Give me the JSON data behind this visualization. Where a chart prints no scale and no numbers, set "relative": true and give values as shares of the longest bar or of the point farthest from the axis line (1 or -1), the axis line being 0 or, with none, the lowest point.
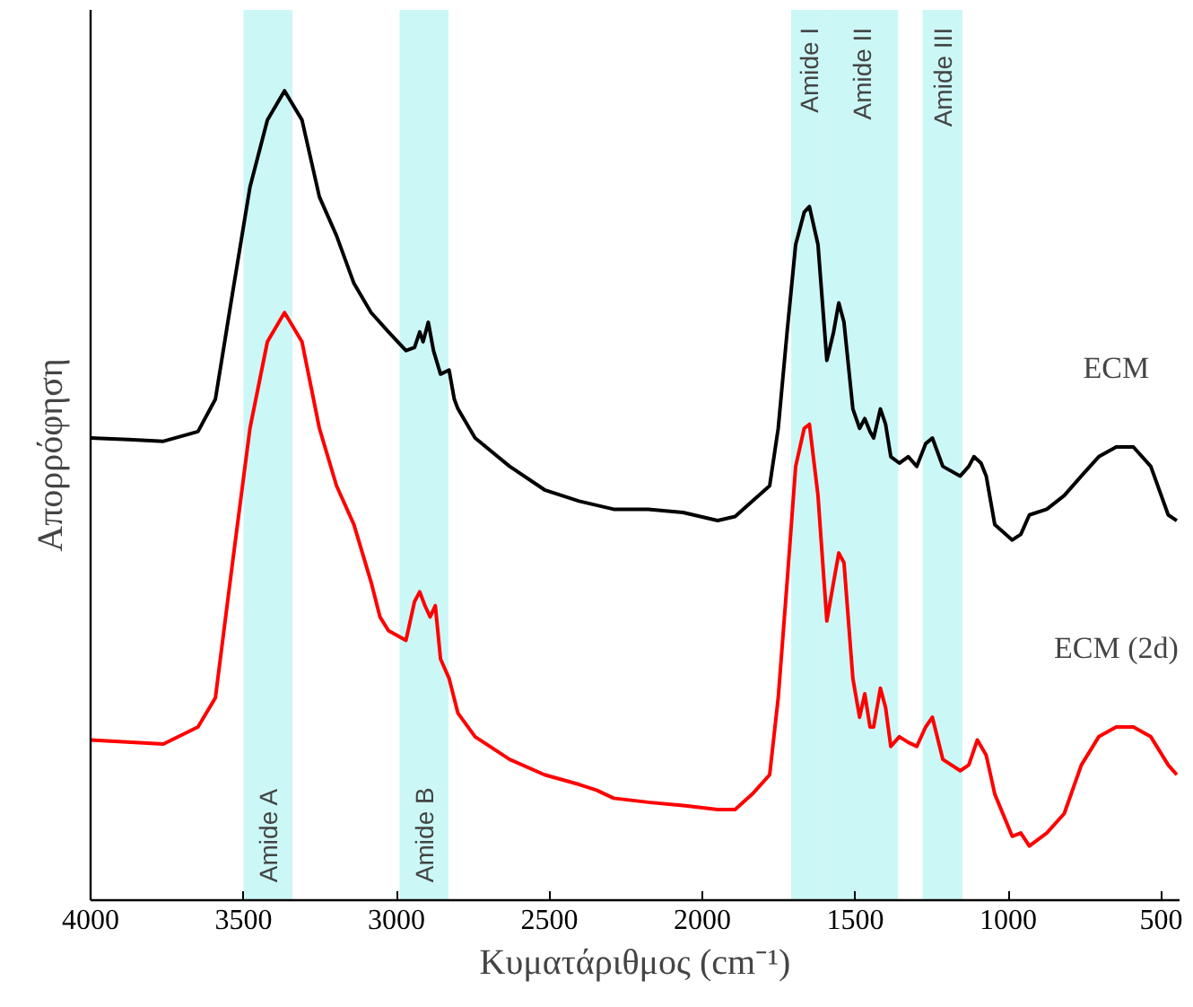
{
  "chart_data": {
    "type": "line",
    "xlabel": "Κυματάριθμος (cm⁻¹)",
    "ylabel": "Απορρόφηση",
    "relative": true,
    "xlim": [
      4000,
      440
    ],
    "xticks": [
      4000,
      3500,
      3000,
      2500,
      2000,
      1500,
      1000,
      500
    ],
    "tick_labels": "x",
    "grid": false,
    "legend": false,
    "series": [
      {
        "name": "ECM",
        "color": "#000000",
        "x": [
          4000,
          3875,
          3762,
          3649,
          3592,
          3536,
          3479,
          3422,
          3366,
          3309,
          3252,
          3196,
          3139,
          3083,
          3026,
          2969,
          2941,
          2924,
          2913,
          2896,
          2879,
          2856,
          2828,
          2811,
          2799,
          2743,
          2630,
          2516,
          2403,
          2290,
          2177,
          2063,
          1950,
          1893,
          1837,
          1780,
          1752,
          1723,
          1695,
          1667,
          1650,
          1622,
          1593,
          1571,
          1554,
          1537,
          1508,
          1486,
          1469,
          1452,
          1440,
          1418,
          1401,
          1384,
          1356,
          1327,
          1299,
          1270,
          1248,
          1214,
          1157,
          1129,
          1112,
          1089,
          1072,
          1044,
          987,
          959,
          931,
          874,
          817,
          761,
          704,
          647,
          591,
          534,
          477,
          449
        ],
        "values": [
          0.571,
          0.569,
          0.567,
          0.579,
          0.619,
          0.75,
          0.881,
          0.964,
          1.0,
          0.964,
          0.869,
          0.821,
          0.762,
          0.726,
          0.702,
          0.679,
          0.683,
          0.702,
          0.69,
          0.714,
          0.679,
          0.65,
          0.655,
          0.619,
          0.607,
          0.571,
          0.536,
          0.507,
          0.493,
          0.483,
          0.483,
          0.479,
          0.469,
          0.474,
          0.493,
          0.512,
          0.583,
          0.702,
          0.81,
          0.85,
          0.857,
          0.81,
          0.667,
          0.702,
          0.738,
          0.714,
          0.607,
          0.583,
          0.595,
          0.579,
          0.571,
          0.607,
          0.588,
          0.548,
          0.54,
          0.548,
          0.536,
          0.564,
          0.571,
          0.536,
          0.524,
          0.536,
          0.548,
          0.54,
          0.524,
          0.464,
          0.445,
          0.452,
          0.476,
          0.483,
          0.5,
          0.524,
          0.548,
          0.56,
          0.56,
          0.536,
          0.476,
          0.469
        ]
      },
      {
        "name": "ECM (2d)",
        "color": "#ff0000",
        "x": [
          4000,
          3762,
          3649,
          3592,
          3536,
          3479,
          3422,
          3366,
          3309,
          3252,
          3196,
          3139,
          3083,
          3054,
          3026,
          2969,
          2941,
          2924,
          2907,
          2890,
          2873,
          2856,
          2828,
          2799,
          2743,
          2630,
          2516,
          2403,
          2346,
          2290,
          2177,
          2063,
          1950,
          1893,
          1837,
          1780,
          1752,
          1723,
          1695,
          1667,
          1650,
          1622,
          1593,
          1571,
          1554,
          1537,
          1508,
          1486,
          1469,
          1452,
          1440,
          1418,
          1401,
          1384,
          1356,
          1327,
          1299,
          1270,
          1248,
          1214,
          1157,
          1129,
          1101,
          1072,
          1044,
          987,
          959,
          931,
          874,
          817,
          761,
          704,
          647,
          591,
          534,
          477,
          449
        ],
        "values": [
          0.198,
          0.193,
          0.214,
          0.25,
          0.417,
          0.583,
          0.69,
          0.726,
          0.69,
          0.583,
          0.512,
          0.464,
          0.393,
          0.35,
          0.333,
          0.321,
          0.369,
          0.381,
          0.364,
          0.35,
          0.364,
          0.298,
          0.274,
          0.231,
          0.202,
          0.174,
          0.155,
          0.143,
          0.136,
          0.126,
          0.121,
          0.117,
          0.112,
          0.112,
          0.131,
          0.155,
          0.25,
          0.393,
          0.536,
          0.583,
          0.588,
          0.5,
          0.345,
          0.393,
          0.429,
          0.417,
          0.274,
          0.226,
          0.255,
          0.214,
          0.214,
          0.262,
          0.238,
          0.19,
          0.202,
          0.195,
          0.19,
          0.214,
          0.226,
          0.174,
          0.16,
          0.167,
          0.198,
          0.179,
          0.131,
          0.079,
          0.083,
          0.067,
          0.083,
          0.107,
          0.167,
          0.202,
          0.214,
          0.214,
          0.202,
          0.167,
          0.155
        ]
      }
    ],
    "bands": [
      {
        "axis": "x",
        "from": 3500,
        "to": 3340,
        "label": "Amide A",
        "color": "#ccf7f7"
      },
      {
        "axis": "x",
        "from": 2990,
        "to": 2830,
        "label": "Amide B",
        "color": "#ccf7f7"
      },
      {
        "axis": "x",
        "from": 1710,
        "to": 1595,
        "label": "Amide I",
        "color": "#ccf7f7"
      },
      {
        "axis": "x",
        "from": 1595,
        "to": 1360,
        "label": "Amide II",
        "color": "#ccf7f7"
      },
      {
        "axis": "x",
        "from": 1280,
        "to": 1150,
        "label": "Amide III",
        "color": "#ccf7f7"
      }
    ]
  }
}
